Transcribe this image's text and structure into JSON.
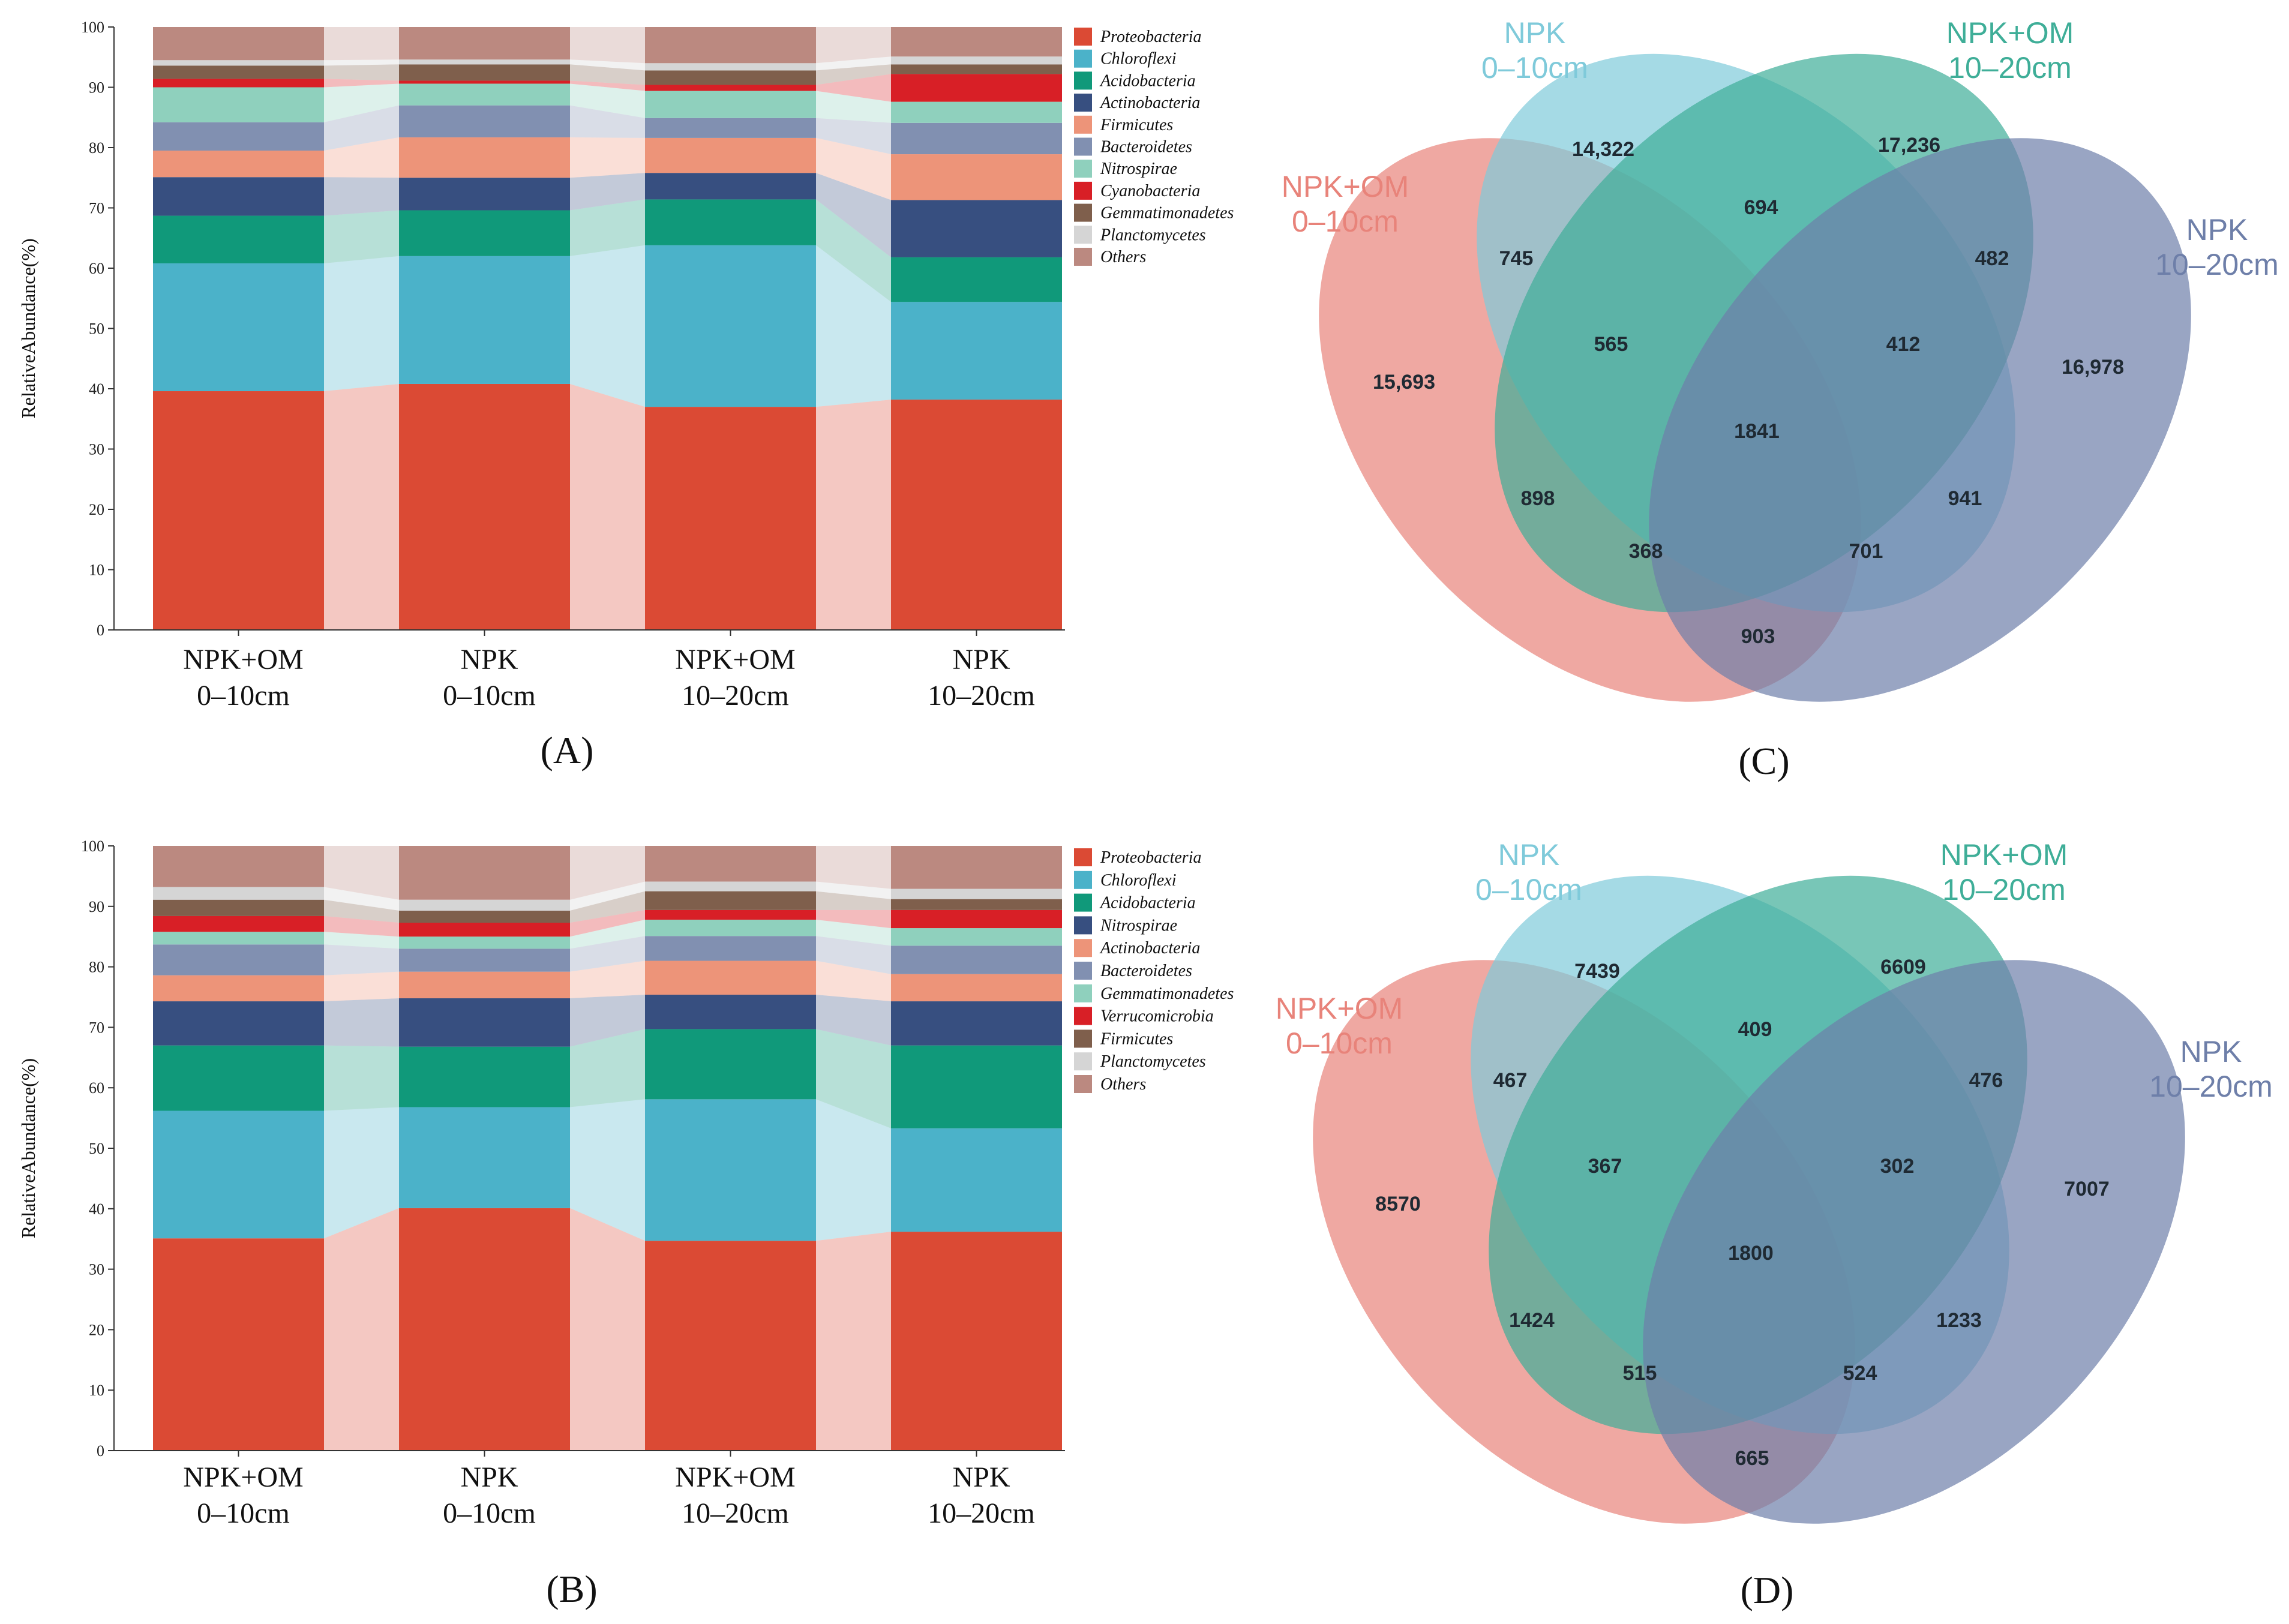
{
  "chart_data": [
    {
      "panel": "(A)",
      "type": "bar",
      "stacked": true,
      "ylabel": "RelativeAbundance(%)",
      "ylim": [
        0,
        100
      ],
      "yticks": [
        0,
        10,
        20,
        30,
        40,
        50,
        60,
        70,
        80,
        90,
        100
      ],
      "categories": [
        [
          "NPK+OM",
          "0–10cm"
        ],
        [
          "NPK",
          "0–10cm"
        ],
        [
          "NPK+OM",
          "10–20cm"
        ],
        [
          "NPK",
          "10–20cm"
        ]
      ],
      "legend_position": "right",
      "series": [
        {
          "name": "Proteobacteria",
          "color": "#DB4A34",
          "values": [
            39.6,
            40.8,
            37.0,
            38.2
          ]
        },
        {
          "name": "Chloroflexi",
          "color": "#4BB2C9",
          "values": [
            21.2,
            21.2,
            26.8,
            16.2
          ]
        },
        {
          "name": "Acidobacteria",
          "color": "#10997A",
          "values": [
            7.9,
            7.6,
            7.6,
            7.4
          ]
        },
        {
          "name": "Actinobacteria",
          "color": "#374F80",
          "values": [
            6.4,
            5.4,
            4.4,
            9.5
          ]
        },
        {
          "name": "Firmicutes",
          "color": "#ED9479",
          "values": [
            4.4,
            6.7,
            5.8,
            7.6
          ]
        },
        {
          "name": "Bacteroidetes",
          "color": "#8190B1",
          "values": [
            4.7,
            5.3,
            3.3,
            5.2
          ]
        },
        {
          "name": "Nitrospirae",
          "color": "#8FD0BD",
          "values": [
            5.8,
            3.6,
            4.5,
            3.5
          ]
        },
        {
          "name": "Cyanobacteria",
          "color": "#D81F26",
          "values": [
            1.4,
            0.5,
            1.0,
            4.6
          ]
        },
        {
          "name": "Gemmatimonadetes",
          "color": "#7F5F4C",
          "values": [
            2.2,
            2.7,
            2.4,
            1.6
          ]
        },
        {
          "name": "Planctomycetes",
          "color": "#D5D5D5",
          "values": [
            0.9,
            0.8,
            1.2,
            1.3
          ]
        },
        {
          "name": "Others",
          "color": "#BB8980",
          "values": [
            5.5,
            5.4,
            6.0,
            4.9
          ]
        }
      ]
    },
    {
      "panel": "(B)",
      "type": "bar",
      "stacked": true,
      "ylabel": "RelativeAbundance(%)",
      "ylim": [
        0,
        100
      ],
      "yticks": [
        0,
        10,
        20,
        30,
        40,
        50,
        60,
        70,
        80,
        90,
        100
      ],
      "categories": [
        [
          "NPK+OM",
          "0–10cm"
        ],
        [
          "NPK",
          "0–10cm"
        ],
        [
          "NPK+OM",
          "10–20cm"
        ],
        [
          "NPK",
          "10–20cm"
        ]
      ],
      "legend_position": "right",
      "series": [
        {
          "name": "Proteobacteria",
          "color": "#DB4A34",
          "values": [
            35.1,
            40.1,
            34.7,
            36.2
          ]
        },
        {
          "name": "Chloroflexi",
          "color": "#4BB2C9",
          "values": [
            21.1,
            16.7,
            23.4,
            17.1
          ]
        },
        {
          "name": "Acidobacteria",
          "color": "#10997A",
          "values": [
            10.8,
            10.0,
            11.6,
            13.7
          ]
        },
        {
          "name": "Nitrospirae",
          "color": "#374F80",
          "values": [
            7.3,
            8.0,
            5.7,
            7.3
          ]
        },
        {
          "name": "Actinobacteria",
          "color": "#ED9479",
          "values": [
            4.3,
            4.4,
            5.6,
            4.5
          ]
        },
        {
          "name": "Bacteroidetes",
          "color": "#8190B1",
          "values": [
            5.1,
            3.8,
            4.1,
            4.7
          ]
        },
        {
          "name": "Gemmatimonadetes",
          "color": "#8FD0BD",
          "values": [
            2.1,
            2.0,
            2.7,
            2.9
          ]
        },
        {
          "name": "Verrucomicrobia",
          "color": "#D81F26",
          "values": [
            2.6,
            2.3,
            1.6,
            3.0
          ]
        },
        {
          "name": "Firmicutes",
          "color": "#7F5F4C",
          "values": [
            2.7,
            2.0,
            3.1,
            1.8
          ]
        },
        {
          "name": "Planctomycetes",
          "color": "#D5D5D5",
          "values": [
            2.1,
            1.8,
            1.6,
            1.7
          ]
        },
        {
          "name": "Others",
          "color": "#BB8980",
          "values": [
            6.8,
            8.9,
            5.9,
            7.1
          ]
        }
      ]
    },
    {
      "panel": "(C)",
      "type": "venn",
      "sets": [
        {
          "label": [
            "NPK+OM",
            "0–10cm"
          ],
          "color": "#E8837A"
        },
        {
          "label": [
            "NPK",
            "0–10cm"
          ],
          "color": "#7FCADA"
        },
        {
          "label": [
            "NPK+OM",
            "10–20cm"
          ],
          "color": "#3FAE98"
        },
        {
          "label": [
            "NPK",
            "10–20cm"
          ],
          "color": "#6E7FA9"
        }
      ],
      "regions": [
        {
          "sets": "NPK 0–10cm only",
          "value": "14,322"
        },
        {
          "sets": "NPK+OM 10–20cm only",
          "value": "17,236"
        },
        {
          "sets": "NPK+OM 0–10cm only",
          "value": "15,693"
        },
        {
          "sets": "NPK 10–20cm only",
          "value": "16,978"
        },
        {
          "sets": "NPK 0–10cm ∩ NPK+OM 10–20cm",
          "value": "694"
        },
        {
          "sets": "NPK+OM 0–10cm ∩ NPK 0–10cm",
          "value": "745"
        },
        {
          "sets": "NPK+OM 10–20cm ∩ NPK 10–20cm",
          "value": "482"
        },
        {
          "sets": "NPK+OM 0–10cm ∩ NPK 0–10cm ∩ NPK+OM 10–20cm",
          "value": "565"
        },
        {
          "sets": "NPK 0–10cm ∩ NPK+OM 10–20cm ∩ NPK 10–20cm",
          "value": "412"
        },
        {
          "sets": "all four",
          "value": "1841"
        },
        {
          "sets": "NPK+OM 0–10cm ∩ NPK+OM 10–20cm",
          "value": "898"
        },
        {
          "sets": "NPK 0–10cm ∩ NPK 10–20cm",
          "value": "941"
        },
        {
          "sets": "NPK+OM 0–10cm ∩ NPK+OM 10–20cm ∩ NPK 10–20cm",
          "value": "368"
        },
        {
          "sets": "NPK+OM 0–10cm ∩ NPK 0–10cm ∩ NPK 10–20cm",
          "value": "701"
        },
        {
          "sets": "NPK+OM 0–10cm ∩ NPK 10–20cm",
          "value": "903"
        }
      ]
    },
    {
      "panel": "(D)",
      "type": "venn",
      "sets": [
        {
          "label": [
            "NPK+OM",
            "0–10cm"
          ],
          "color": "#E8837A"
        },
        {
          "label": [
            "NPK",
            "0–10cm"
          ],
          "color": "#7FCADA"
        },
        {
          "label": [
            "NPK+OM",
            "10–20cm"
          ],
          "color": "#3FAE98"
        },
        {
          "label": [
            "NPK",
            "10–20cm"
          ],
          "color": "#6E7FA9"
        }
      ],
      "regions": [
        {
          "sets": "NPK 0–10cm only",
          "value": "7439"
        },
        {
          "sets": "NPK+OM 10–20cm only",
          "value": "6609"
        },
        {
          "sets": "NPK+OM 0–10cm only",
          "value": "8570"
        },
        {
          "sets": "NPK 10–20cm only",
          "value": "7007"
        },
        {
          "sets": "NPK 0–10cm ∩ NPK+OM 10–20cm",
          "value": "409"
        },
        {
          "sets": "NPK+OM 0–10cm ∩ NPK 0–10cm",
          "value": "467"
        },
        {
          "sets": "NPK+OM 10–20cm ∩ NPK 10–20cm",
          "value": "476"
        },
        {
          "sets": "NPK+OM 0–10cm ∩ NPK 0–10cm ∩ NPK+OM 10–20cm",
          "value": "367"
        },
        {
          "sets": "NPK 0–10cm ∩ NPK+OM 10–20cm ∩ NPK 10–20cm",
          "value": "302"
        },
        {
          "sets": "all four",
          "value": "1800"
        },
        {
          "sets": "NPK+OM 0–10cm ∩ NPK+OM 10–20cm",
          "value": "1424"
        },
        {
          "sets": "NPK 0–10cm ∩ NPK 10–20cm",
          "value": "1233"
        },
        {
          "sets": "NPK+OM 0–10cm ∩ NPK+OM 10–20cm ∩ NPK 10–20cm",
          "value": "515"
        },
        {
          "sets": "NPK+OM 0–10cm ∩ NPK 0–10cm ∩ NPK 10–20cm",
          "value": "524"
        },
        {
          "sets": "NPK+OM 0–10cm ∩ NPK 10–20cm",
          "value": "665"
        }
      ]
    }
  ]
}
